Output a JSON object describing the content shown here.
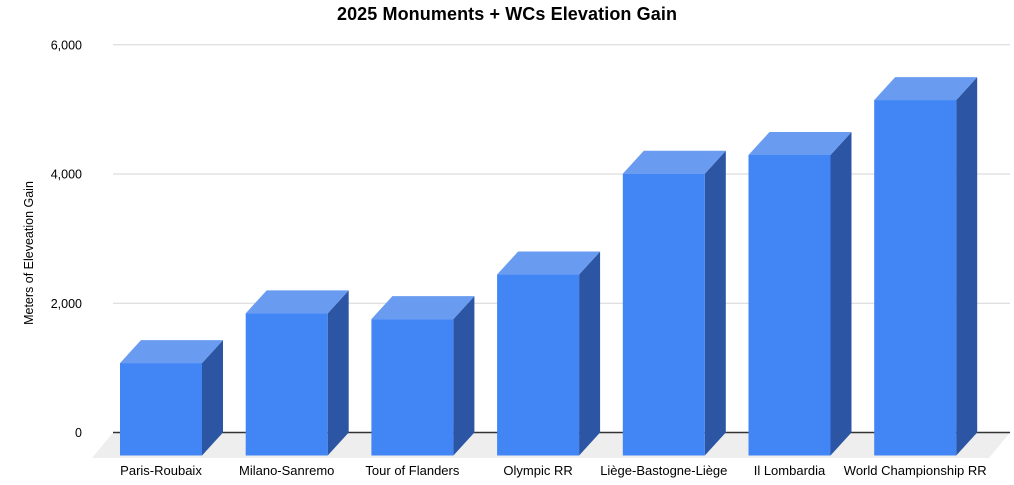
{
  "chart_data": {
    "type": "bar",
    "projection": "3d-column",
    "title": "2025 Monuments + WCs Elevation Gain",
    "xlabel": "",
    "ylabel": "Meters of Eleveation Gain",
    "categories": [
      "Paris-Roubaix",
      "Milano-Sanremo",
      "Tour of Flanders",
      "Olympic RR",
      "Liège-Bastogne-Liège",
      "Il Lombardia",
      "World Championship RR"
    ],
    "values": [
      1430,
      2200,
      2110,
      2800,
      4360,
      4650,
      5500
    ],
    "ylim": [
      0,
      6000
    ],
    "yticks": [
      0,
      2000,
      4000,
      6000
    ],
    "ytick_labels": [
      "0",
      "2,000",
      "4,000",
      "6,000"
    ],
    "grid": true,
    "legend": false,
    "colors": {
      "bar_front": "#4285F4",
      "bar_top": "#699CF1",
      "bar_side": "#2C55A3",
      "gridline": "#D6D6D6",
      "axis_line": "#333333",
      "floor": "#EEEEEE",
      "background": "#FFFFFF",
      "text": "#000000"
    }
  }
}
